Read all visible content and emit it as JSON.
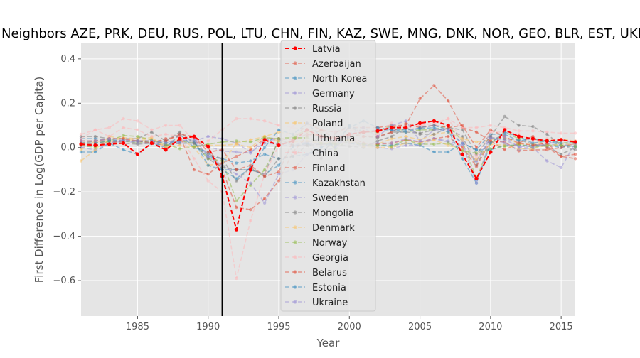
{
  "chart_data": {
    "type": "line",
    "title": "Neighbors AZE, PRK, DEU, RUS, POL, LTU, CHN, FIN, KAZ, SWE, MNG, DNK, NOR, GEO, BLR, EST, UKR",
    "xlabel": "Year",
    "ylabel": "First Difference in Log(GDP per Capita)",
    "xlim": [
      1981,
      2016
    ],
    "ylim": [
      -0.76,
      0.47
    ],
    "xticks": [
      1985,
      1990,
      1995,
      2000,
      2005,
      2010,
      2015
    ],
    "yticks": [
      -0.6,
      -0.4,
      -0.2,
      0.0,
      0.2,
      0.4
    ],
    "xtick_labels": [
      "1985",
      "1990",
      "1995",
      "2000",
      "2005",
      "2010",
      "2015"
    ],
    "ytick_labels": [
      "−0.6",
      "−0.4",
      "−0.2",
      "0.0",
      "0.2",
      "0.4"
    ],
    "grid": true,
    "legend_position": "top-center",
    "vline": {
      "x": 1991,
      "color": "#000000"
    },
    "x": [
      1981,
      1982,
      1983,
      1984,
      1985,
      1986,
      1987,
      1988,
      1989,
      1990,
      1991,
      1992,
      1993,
      1994,
      1995,
      1996,
      1997,
      1998,
      1999,
      2000,
      2001,
      2002,
      2003,
      2004,
      2005,
      2006,
      2007,
      2008,
      2009,
      2010,
      2011,
      2012,
      2013,
      2014,
      2015,
      2016
    ],
    "series": [
      {
        "name": "Latvia",
        "color": "#ff0000",
        "highlight": true,
        "values": [
          0.015,
          0.01,
          0.015,
          0.02,
          -0.03,
          0.02,
          -0.01,
          0.04,
          0.05,
          0.005,
          -0.13,
          -0.37,
          -0.1,
          0.035,
          0.01,
          0.03,
          0.08,
          0.05,
          0.04,
          0.06,
          0.07,
          0.075,
          0.09,
          0.09,
          0.11,
          0.12,
          0.1,
          -0.03,
          -0.14,
          -0.02,
          0.08,
          0.05,
          0.04,
          0.03,
          0.035,
          0.025
        ]
      },
      {
        "name": "Azerbaijan",
        "color": "#e24a33",
        "values": [
          0.03,
          0.03,
          0.03,
          0.03,
          0.03,
          0.03,
          0.03,
          0.03,
          0.03,
          0.0,
          -0.1,
          -0.27,
          -0.28,
          -0.23,
          -0.15,
          -0.02,
          0.05,
          0.08,
          0.07,
          0.09,
          0.09,
          0.09,
          0.1,
          0.1,
          0.22,
          0.28,
          0.21,
          0.09,
          0.07,
          0.03,
          -0.01,
          0.02,
          0.05,
          0.0,
          -0.04,
          -0.05
        ]
      },
      {
        "name": "North Korea",
        "color": "#348abd",
        "values": [
          0.04,
          0.04,
          0.035,
          0.03,
          0.03,
          0.02,
          0.02,
          0.02,
          0.02,
          -0.04,
          -0.05,
          -0.07,
          -0.06,
          -0.03,
          -0.05,
          -0.04,
          -0.03,
          0.0,
          0.03,
          0.02,
          0.01,
          0.01,
          0.01,
          0.02,
          0.01,
          -0.02,
          -0.02,
          0.02,
          -0.01,
          -0.01,
          0.01,
          0.01,
          0.01,
          0.01,
          0.0,
          0.01
        ]
      },
      {
        "name": "Germany",
        "color": "#988ed5",
        "values": [
          0.0,
          -0.01,
          0.02,
          0.03,
          0.02,
          0.02,
          0.01,
          0.03,
          0.03,
          0.05,
          0.04,
          0.02,
          -0.02,
          0.02,
          0.015,
          0.005,
          0.015,
          0.02,
          0.02,
          0.03,
          0.015,
          0.0,
          -0.005,
          0.01,
          0.01,
          0.04,
          0.03,
          0.01,
          -0.06,
          0.04,
          0.035,
          0.005,
          0.005,
          0.015,
          0.01,
          0.015
        ]
      },
      {
        "name": "Russia",
        "color": "#777777",
        "values": [
          0.02,
          0.03,
          0.03,
          0.02,
          0.015,
          0.02,
          0.01,
          0.02,
          0.02,
          -0.03,
          -0.05,
          -0.15,
          -0.09,
          -0.13,
          -0.05,
          -0.04,
          0.01,
          -0.05,
          0.065,
          0.1,
          0.05,
          0.045,
          0.07,
          0.07,
          0.065,
          0.08,
          0.085,
          0.05,
          -0.08,
          0.045,
          0.04,
          0.035,
          0.015,
          0.005,
          -0.03,
          0.0
        ]
      },
      {
        "name": "Poland",
        "color": "#fbc15e",
        "values": [
          -0.06,
          -0.01,
          0.05,
          0.04,
          0.03,
          0.04,
          0.0,
          0.04,
          0.0,
          -0.08,
          -0.07,
          0.02,
          0.035,
          0.05,
          0.07,
          0.06,
          0.07,
          0.05,
          0.045,
          0.04,
          0.01,
          0.015,
          0.04,
          0.05,
          0.035,
          0.06,
          0.07,
          0.04,
          0.025,
          0.035,
          0.05,
          0.015,
          0.015,
          0.033,
          0.038,
          0.03
        ]
      },
      {
        "name": "Lithuania",
        "color": "#8eba42",
        "values": [
          0.02,
          0.02,
          0.03,
          0.03,
          0.02,
          0.03,
          0.02,
          0.03,
          0.02,
          -0.05,
          -0.06,
          -0.24,
          -0.17,
          -0.1,
          0.03,
          0.05,
          0.08,
          0.07,
          -0.01,
          0.04,
          0.07,
          0.07,
          0.1,
          0.07,
          0.08,
          0.08,
          0.1,
          0.03,
          -0.14,
          0.02,
          0.07,
          0.04,
          0.04,
          0.035,
          0.02,
          0.025
        ]
      },
      {
        "name": "China",
        "color": "#ffb5b8",
        "values": [
          0.04,
          0.08,
          0.09,
          0.13,
          0.12,
          0.08,
          0.1,
          0.1,
          0.03,
          0.03,
          0.08,
          0.13,
          0.13,
          0.12,
          0.1,
          0.09,
          0.08,
          0.07,
          0.07,
          0.08,
          0.075,
          0.08,
          0.09,
          0.09,
          0.1,
          0.11,
          0.13,
          0.09,
          0.09,
          0.1,
          0.09,
          0.075,
          0.075,
          0.07,
          0.065,
          0.065
        ]
      },
      {
        "name": "Finland",
        "color": "#e24a33",
        "values": [
          0.01,
          0.02,
          0.02,
          0.03,
          0.03,
          0.02,
          0.04,
          0.05,
          -0.1,
          -0.12,
          -0.07,
          -0.04,
          -0.01,
          0.04,
          0.04,
          0.035,
          0.06,
          0.05,
          0.04,
          0.05,
          0.02,
          0.015,
          0.02,
          0.035,
          0.025,
          0.04,
          0.05,
          0.0,
          -0.085,
          0.03,
          0.025,
          -0.015,
          -0.01,
          -0.01,
          0.0,
          0.02
        ]
      },
      {
        "name": "Kazakhstan",
        "color": "#348abd",
        "values": [
          -0.02,
          -0.02,
          0.02,
          -0.01,
          -0.03,
          0.02,
          0.0,
          0.06,
          0.0,
          -0.02,
          -0.1,
          -0.1,
          -0.1,
          -0.12,
          -0.08,
          0.005,
          0.02,
          -0.02,
          0.03,
          0.09,
          0.12,
          0.09,
          0.08,
          0.08,
          0.085,
          0.09,
          0.07,
          0.02,
          -0.01,
          0.06,
          0.06,
          0.03,
          0.04,
          0.03,
          0.01,
          0.005
        ]
      },
      {
        "name": "Sweden",
        "color": "#988ed5",
        "values": [
          0.0,
          0.01,
          0.02,
          0.04,
          0.02,
          0.02,
          0.03,
          0.02,
          0.02,
          0.005,
          -0.015,
          -0.02,
          -0.025,
          0.035,
          0.035,
          0.01,
          0.025,
          0.04,
          0.04,
          0.045,
          0.01,
          0.02,
          0.02,
          0.04,
          0.025,
          0.04,
          0.025,
          -0.01,
          -0.06,
          0.05,
          0.02,
          -0.01,
          0.0,
          0.015,
          0.035,
          0.02
        ]
      },
      {
        "name": "Mongolia",
        "color": "#777777",
        "values": [
          0.05,
          0.05,
          0.04,
          0.04,
          0.04,
          0.07,
          0.03,
          0.07,
          0.02,
          -0.05,
          -0.09,
          -0.1,
          -0.1,
          -0.12,
          0.04,
          0.01,
          0.01,
          0.015,
          0.015,
          0.005,
          0.0,
          0.03,
          0.05,
          0.09,
          0.06,
          0.06,
          0.09,
          0.08,
          -0.03,
          0.05,
          0.14,
          0.1,
          0.095,
          0.06,
          0.01,
          -0.01
        ]
      },
      {
        "name": "Denmark",
        "color": "#fbc15e",
        "values": [
          -0.01,
          0.03,
          0.025,
          0.045,
          0.04,
          0.045,
          0.003,
          0.01,
          0.002,
          0.01,
          0.01,
          0.015,
          0.0,
          0.05,
          0.03,
          0.025,
          0.03,
          0.02,
          0.025,
          0.035,
          0.005,
          0.0,
          0.0,
          0.02,
          0.02,
          0.035,
          0.01,
          -0.01,
          -0.055,
          0.015,
          0.01,
          -0.005,
          -0.005,
          0.01,
          0.015,
          0.015
        ]
      },
      {
        "name": "Norway",
        "color": "#8eba42",
        "values": [
          0.01,
          0.0,
          0.03,
          0.055,
          0.05,
          0.035,
          0.015,
          -0.005,
          0.005,
          0.015,
          0.025,
          0.03,
          0.025,
          0.045,
          0.04,
          0.045,
          0.045,
          0.02,
          0.015,
          0.025,
          0.015,
          0.01,
          0.005,
          0.035,
          0.015,
          0.015,
          0.02,
          -0.015,
          -0.025,
          -0.005,
          0.005,
          0.015,
          0.0,
          0.01,
          0.01,
          0.005
        ]
      },
      {
        "name": "Georgia",
        "color": "#ffb5b8",
        "values": [
          0.06,
          0.08,
          0.05,
          0.09,
          0.08,
          0.05,
          0.06,
          0.05,
          -0.05,
          -0.15,
          -0.2,
          -0.59,
          -0.33,
          -0.12,
          0.01,
          0.1,
          0.11,
          0.03,
          0.03,
          0.02,
          0.05,
          0.06,
          0.11,
          0.07,
          0.1,
          0.1,
          0.13,
          0.03,
          -0.04,
          0.07,
          0.07,
          0.06,
          0.03,
          0.04,
          0.03,
          0.03
        ]
      },
      {
        "name": "Belarus",
        "color": "#e24a33",
        "values": [
          0.03,
          0.03,
          0.04,
          0.04,
          0.03,
          0.03,
          0.03,
          0.06,
          0.05,
          -0.02,
          -0.01,
          -0.1,
          -0.08,
          -0.13,
          -0.11,
          0.03,
          0.11,
          0.08,
          0.04,
          0.06,
          0.05,
          0.05,
          0.07,
          0.11,
          0.09,
          0.1,
          0.09,
          0.1,
          0.0,
          0.08,
          0.05,
          0.02,
          0.01,
          0.02,
          -0.04,
          -0.03
        ]
      },
      {
        "name": "Estonia",
        "color": "#348abd",
        "values": [
          0.02,
          0.02,
          0.03,
          0.03,
          0.03,
          0.03,
          0.02,
          0.03,
          0.03,
          -0.08,
          -0.1,
          -0.14,
          -0.09,
          0.0,
          0.08,
          0.06,
          0.11,
          0.05,
          0.0,
          0.1,
          0.07,
          0.08,
          0.08,
          0.07,
          0.09,
          0.1,
          0.08,
          -0.05,
          -0.16,
          0.02,
          0.07,
          0.05,
          0.02,
          0.03,
          0.02,
          0.02
        ]
      },
      {
        "name": "Ukraine",
        "color": "#988ed5",
        "values": [
          0.03,
          0.03,
          0.04,
          0.03,
          0.03,
          0.03,
          0.02,
          0.03,
          0.04,
          -0.04,
          -0.08,
          -0.12,
          -0.16,
          -0.25,
          -0.12,
          -0.1,
          -0.03,
          -0.02,
          0.0,
          0.06,
          0.09,
          0.05,
          0.1,
          0.12,
          0.03,
          0.08,
          0.08,
          0.02,
          -0.16,
          0.04,
          0.05,
          0.0,
          0.0,
          -0.06,
          -0.09,
          0.02
        ]
      }
    ]
  }
}
